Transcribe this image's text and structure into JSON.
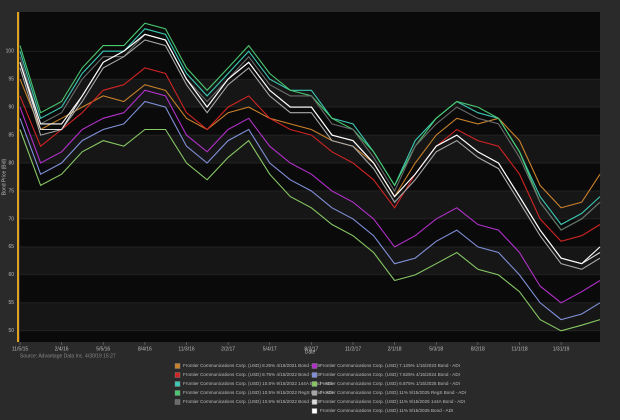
{
  "chart_data": {
    "type": "line",
    "y_label": "Bond Price (Bid)",
    "x_label": "Date",
    "source": "Source: Advantage Data Inc. 4/30/19 15:27",
    "x": [
      "11/5/15",
      "12/20/15",
      "2/4/16",
      "3/20/16",
      "5/5/16",
      "6/19/16",
      "8/4/16",
      "9/18/16",
      "11/3/16",
      "12/18/16",
      "2/2/17",
      "3/19/17",
      "5/4/17",
      "6/18/17",
      "8/3/17",
      "9/17/17",
      "11/2/17",
      "12/17/17",
      "2/1/18",
      "3/18/18",
      "5/3/18",
      "6/17/18",
      "8/2/18",
      "9/16/18",
      "11/1/18",
      "12/16/18",
      "1/31/19",
      "3/17/19",
      "4/26/19"
    ],
    "xlim": [
      "11/5/15",
      "4/26/19"
    ],
    "xticks": [
      "11/5/15",
      "2/4/16",
      "5/5/16",
      "8/4/16",
      "11/3/16",
      "2/2/17",
      "5/4/17",
      "8/3/17",
      "11/2/17",
      "2/1/18",
      "5/3/18",
      "8/2/18",
      "11/1/18",
      "1/31/19"
    ],
    "ylim": [
      48,
      107
    ],
    "yticks": [
      50,
      55,
      60,
      65,
      70,
      75,
      80,
      85,
      90,
      95,
      100
    ],
    "grid": true,
    "series": [
      {
        "name": "Frontier Communications Corp. (USD) 8.25% 4/15/2021 Bond - ADI",
        "color": "#c8802a",
        "values": [
          95,
          86,
          88,
          90,
          92,
          91,
          94,
          93,
          88,
          86,
          89,
          90,
          88,
          87,
          86,
          84,
          83,
          80,
          74,
          80,
          85,
          88,
          87,
          88,
          84,
          76,
          72,
          73,
          78
        ]
      },
      {
        "name": "Frontier Communications Corp. (USD) 8.75% 4/15/2022 Bond - ADI",
        "color": "#d02424",
        "values": [
          92,
          83,
          86,
          89,
          93,
          94,
          97,
          96,
          89,
          86,
          90,
          92,
          88,
          86,
          85,
          82,
          80,
          77,
          72,
          78,
          83,
          86,
          84,
          83,
          78,
          70,
          66,
          67,
          69
        ]
      },
      {
        "name": "Frontier Communications Corp. (USD) 10.5% 9/15/2022 144A Bond - ADI",
        "color": "#3cc8b4",
        "values": [
          100,
          88,
          90,
          96,
          100,
          100,
          104,
          103,
          96,
          92,
          96,
          100,
          95,
          93,
          93,
          88,
          87,
          82,
          76,
          84,
          88,
          91,
          89,
          88,
          82,
          74,
          69,
          71,
          74
        ]
      },
      {
        "name": "Frontier Communications Corp. (USD) 10.5% 9/15/2022 RegS Bond - ADI",
        "color": "#4ac870",
        "values": [
          101,
          89,
          91,
          97,
          101,
          101,
          105,
          104,
          97,
          93,
          97,
          101,
          96,
          93,
          92,
          88,
          86,
          82,
          76,
          83,
          88,
          91,
          90,
          88,
          82,
          73,
          68,
          70,
          73
        ]
      },
      {
        "name": "Frontier Communications Corp. (USD) 10.5% 9/15/2022 Bond - ADI",
        "color": "#6a6a6a",
        "values": [
          99,
          87,
          89,
          95,
          99,
          99,
          103,
          102,
          95,
          91,
          95,
          99,
          94,
          92,
          92,
          87,
          86,
          81,
          75,
          83,
          87,
          90,
          88,
          87,
          81,
          73,
          68,
          70,
          73
        ]
      },
      {
        "name": "Frontier Communications Corp. (USD) 7.125% 1/15/2023 Bond - ADI",
        "color": "#b030c8",
        "values": [
          90,
          80,
          82,
          86,
          88,
          89,
          93,
          92,
          85,
          82,
          86,
          88,
          83,
          80,
          78,
          75,
          73,
          70,
          65,
          67,
          70,
          72,
          69,
          68,
          64,
          58,
          55,
          57,
          59
        ]
      },
      {
        "name": "Frontier Communications Corp. (USD) 7.625% 4/15/2024 Bond - ADI",
        "color": "#8090d8",
        "values": [
          88,
          78,
          80,
          84,
          86,
          87,
          91,
          90,
          83,
          80,
          84,
          86,
          80,
          77,
          75,
          72,
          70,
          67,
          62,
          63,
          66,
          68,
          65,
          64,
          60,
          55,
          52,
          53,
          55
        ]
      },
      {
        "name": "Frontier Communications Corp. (USD) 6.875% 1/15/2025 Bond - ADI",
        "color": "#88c864",
        "values": [
          86,
          76,
          78,
          82,
          84,
          83,
          86,
          86,
          80,
          77,
          81,
          84,
          78,
          74,
          72,
          69,
          67,
          64,
          59,
          60,
          62,
          64,
          61,
          60,
          57,
          52,
          50,
          51,
          52
        ]
      },
      {
        "name": "Frontier Communications Corp. (USD) 11% 9/15/2025 RegS Bond - ADI",
        "color": "#a8a8a8",
        "values": [
          97,
          85,
          86,
          91,
          97,
          99,
          102,
          101,
          94,
          89,
          94,
          97,
          92,
          89,
          89,
          84,
          83,
          79,
          73,
          77,
          82,
          84,
          81,
          79,
          73,
          67,
          62,
          61,
          63
        ]
      },
      {
        "name": "Frontier Communications Corp. (USD) 11% 9/15/2025 144A Bond - ADI",
        "color": "#dcdcdc",
        "values": [
          98,
          86,
          86,
          92,
          98,
          100,
          103,
          102,
          95,
          90,
          95,
          98,
          93,
          90,
          90,
          85,
          84,
          80,
          74,
          78,
          83,
          85,
          82,
          80,
          74,
          68,
          63,
          62,
          64
        ]
      },
      {
        "name": "Frontier Communications Corp. (USD) 11% 9/15/2025 Bond - ADI",
        "color": "#ffffff",
        "values": [
          98,
          87,
          87,
          92,
          98,
          100,
          103,
          102,
          95,
          90,
          95,
          98,
          93,
          90,
          90,
          85,
          84,
          80,
          74,
          78,
          83,
          85,
          82,
          80,
          74,
          68,
          63,
          62,
          65
        ]
      }
    ]
  }
}
